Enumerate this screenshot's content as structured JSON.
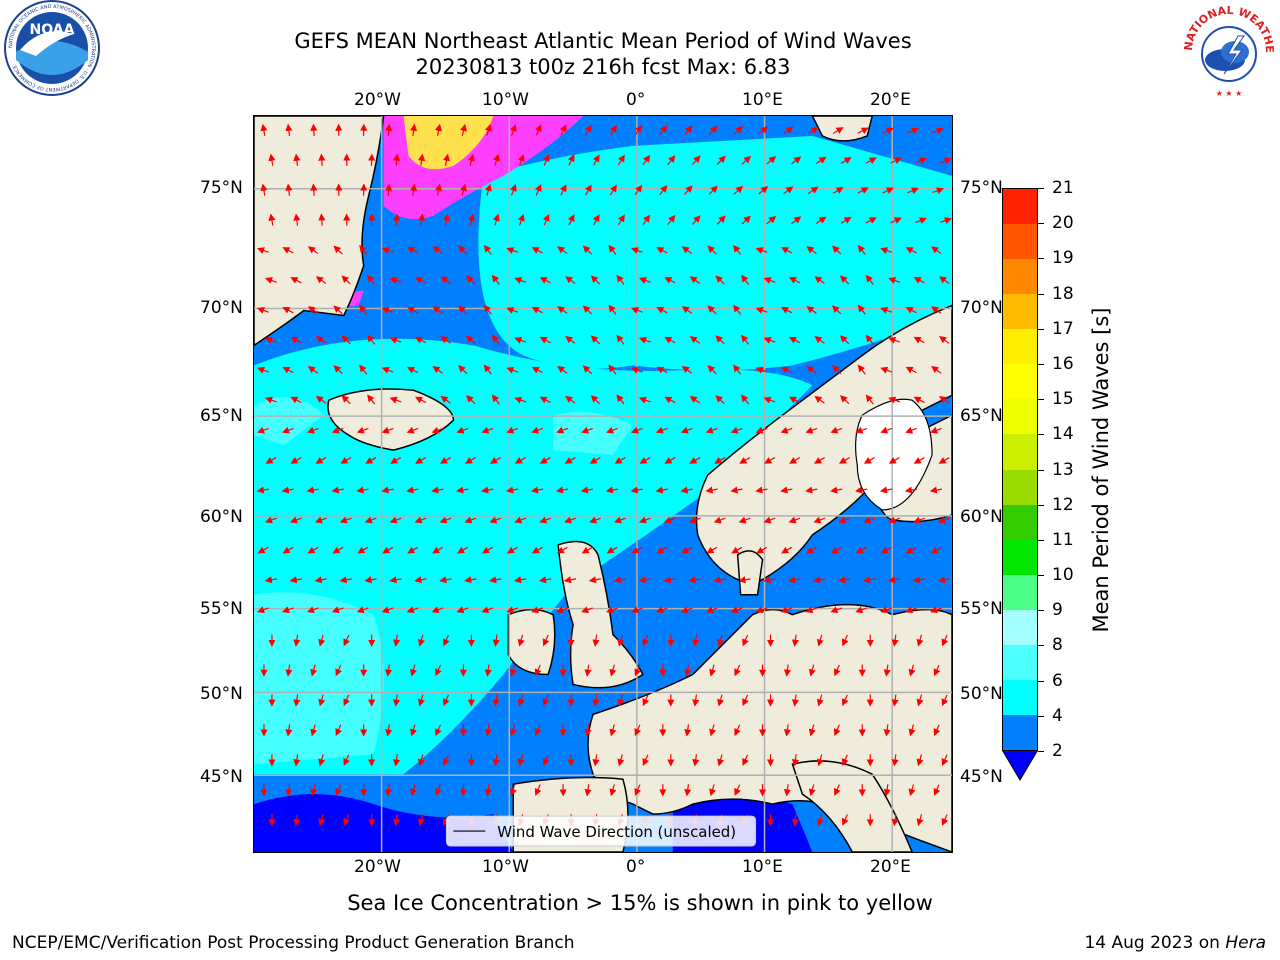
{
  "header": {
    "title_line1": "GEFS MEAN Northeast Atlantic Mean Period of Wind Waves",
    "title_line2": "20230813 t00z 216h fcst   Max: 6.83"
  },
  "logos": {
    "left": {
      "name": "NOAA",
      "ring_text": "NATIONAL OCEANIC AND ATMOSPHERIC ADMINISTRATION · U.S. DEPARTMENT OF COMMERCE"
    },
    "right": {
      "name": "NATIONAL WEATHER SERVICE"
    }
  },
  "map": {
    "lon_labels": [
      "20°W",
      "10°W",
      "0°",
      "10°E",
      "20°E"
    ],
    "lat_labels": [
      "75°N",
      "70°N",
      "65°N",
      "60°N",
      "55°N",
      "50°N",
      "45°N"
    ],
    "legend_label": "Wind Wave Direction (unscaled)",
    "colors": {
      "ocean_low": "#0080ff",
      "ocean_mid": "#00ffff",
      "ocean_high": "#4dffff",
      "ocean_min": "#0000ff",
      "land": "#efecdc",
      "ice_pink": "#ff3fff",
      "ice_yellow": "#ffe14d",
      "arrow": "#ff0000",
      "grid": "#b0b0b0"
    }
  },
  "colorbar": {
    "label": "Mean Period of Wind Waves [s]",
    "ticks": [
      "2",
      "4",
      "6",
      "8",
      "9",
      "10",
      "11",
      "12",
      "13",
      "14",
      "15",
      "16",
      "17",
      "18",
      "19",
      "20",
      "21"
    ],
    "colors": [
      "#0080ff",
      "#00ffff",
      "#4dffff",
      "#a6ffff",
      "#4dff88",
      "#00e600",
      "#33cc00",
      "#99dd00",
      "#ccee00",
      "#eeff00",
      "#ffff00",
      "#ffee00",
      "#ffbb00",
      "#ff8800",
      "#ff5500",
      "#ff2200"
    ],
    "under_color": "#0000ff"
  },
  "caption": "Sea Ice Concentration > 15% is shown in pink to yellow",
  "footer": {
    "left": "NCEP/EMC/Verification Post Processing Product Generation Branch",
    "right_prefix": "14 Aug 2023 on ",
    "right_host": "Hera"
  }
}
